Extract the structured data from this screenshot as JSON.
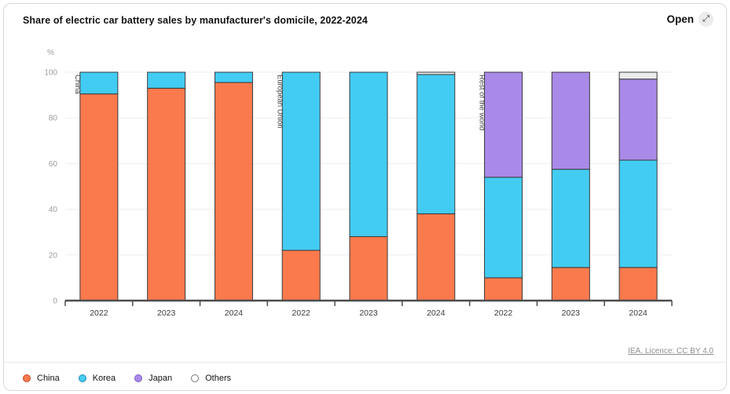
{
  "header": {
    "title": "Share of electric car battery sales by manufacturer's domicile, 2022-2024",
    "open_label": "Open",
    "open_icon_glyph": "⤢"
  },
  "footer": {
    "licence_link": "IEA. Licence: CC BY 4.0"
  },
  "legend": {
    "items": [
      {
        "label": "China",
        "color": "#fb7a4d",
        "border": "#c2492a"
      },
      {
        "label": "Korea",
        "color": "#43ccf3",
        "border": "#2a8ab5"
      },
      {
        "label": "Japan",
        "color": "#a98ae8",
        "border": "#7a5cc0"
      },
      {
        "label": "Others",
        "color": "#ffffff",
        "border": "#777777"
      }
    ]
  },
  "chart_data": {
    "type": "bar",
    "stacked": true,
    "title": "Share of electric car battery sales by manufacturer's domicile, 2022-2024",
    "unit": "%",
    "ylim": [
      0,
      100
    ],
    "yticks": [
      0,
      20,
      40,
      60,
      80,
      100
    ],
    "grid": true,
    "legend_position": "bottom-left",
    "groups": [
      "China",
      "European Union",
      "Rest of the world"
    ],
    "years": [
      "2022",
      "2023",
      "2024"
    ],
    "categories": [
      "China 2022",
      "China 2023",
      "China 2024",
      "European Union 2022",
      "European Union 2023",
      "European Union 2024",
      "Rest of the world 2022",
      "Rest of the world 2023",
      "Rest of the world 2024"
    ],
    "series": [
      {
        "name": "China",
        "color": "#fb7a4d",
        "values": [
          90.5,
          93,
          95.5,
          22,
          28,
          38,
          10,
          14.5,
          14.5
        ]
      },
      {
        "name": "Korea",
        "color": "#43ccf3",
        "values": [
          9.5,
          7,
          4.5,
          78,
          72,
          61,
          44,
          43,
          47
        ]
      },
      {
        "name": "Japan",
        "color": "#a98ae8",
        "values": [
          0,
          0,
          0,
          0,
          0,
          0,
          46,
          42.5,
          35.5
        ]
      },
      {
        "name": "Others",
        "color": "#ebebeb",
        "values": [
          0,
          0,
          0,
          0,
          0,
          1,
          0,
          0,
          3
        ]
      }
    ],
    "axis_colors": {
      "grid": "#ededed",
      "axis": "#4d4d4d",
      "tick_label": "#9b9b9b",
      "year_label": "#3c3c3c",
      "group_label": "#3f3f3f",
      "bar_stroke": "#3a3a3a"
    }
  }
}
